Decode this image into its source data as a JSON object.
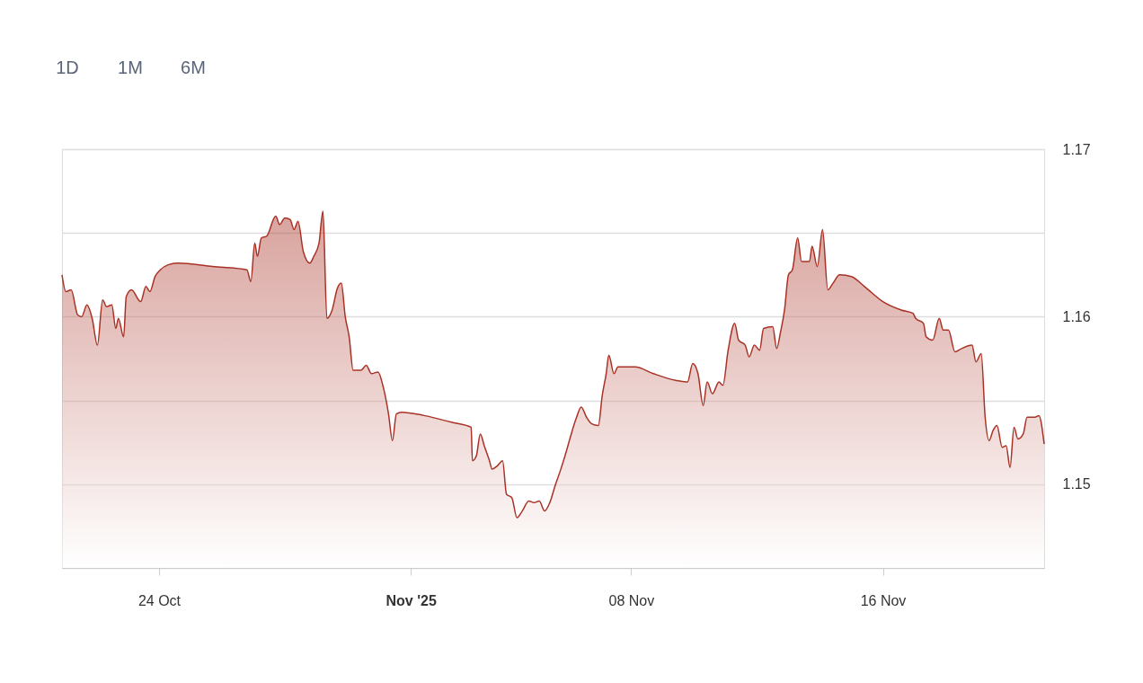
{
  "chart_data": {
    "type": "area",
    "annotations": [
      "1D",
      "1M",
      "6M"
    ],
    "x": [
      "2025-10-20T22:00",
      "2025-10-21T01:00",
      "2025-10-21T05:00",
      "2025-10-21T10:00",
      "2025-10-21T13:00",
      "2025-10-21T17:00",
      "2025-10-21T21:00",
      "2025-10-22T01:00",
      "2025-10-22T05:00",
      "2025-10-22T08:00",
      "2025-10-22T12:00",
      "2025-10-22T15:00",
      "2025-10-22T17:00",
      "2025-10-22T21:00",
      "2025-10-22T23:00",
      "2025-10-23T03:00",
      "2025-10-23T10:00",
      "2025-10-23T14:00",
      "2025-10-23T17:00",
      "2025-10-23T21:00",
      "2025-10-24T01:00",
      "2025-10-24T07:00",
      "2025-10-24T14:00",
      "2025-10-25T17:00",
      "2025-10-26T19:00",
      "2025-10-26T22:00",
      "2025-10-27T01:00",
      "2025-10-27T03:00",
      "2025-10-27T06:00",
      "2025-10-27T10:00",
      "2025-10-27T17:00",
      "2025-10-27T20:00",
      "2025-10-28T00:00",
      "2025-10-28T04:00",
      "2025-10-28T07:00",
      "2025-10-28T10:00",
      "2025-10-28T14:00",
      "2025-10-28T19:00",
      "2025-10-28T22:00",
      "2025-10-29T02:00",
      "2025-10-29T05:00",
      "2025-10-29T08:00",
      "2025-10-29T12:00",
      "2025-10-29T16:00",
      "2025-10-29T19:00",
      "2025-10-29T22:00",
      "2025-10-30T01:00",
      "2025-10-30T04:00",
      "2025-10-30T10:00",
      "2025-10-30T14:00",
      "2025-10-30T18:00",
      "2025-10-30T23:00",
      "2025-10-31T03:00",
      "2025-10-31T07:00",
      "2025-10-31T10:00",
      "2025-10-31T13:00",
      "2025-10-31T17:00",
      "2025-11-01T10:00",
      "2025-11-02T07:00",
      "2025-11-02T22:00",
      "2025-11-02T23:00",
      "2025-11-03T02:00",
      "2025-11-03T05:00",
      "2025-11-03T08:00",
      "2025-11-03T12:00",
      "2025-11-03T14:00",
      "2025-11-03T18:00",
      "2025-11-03T22:00",
      "2025-11-04T01:00",
      "2025-11-04T05:00",
      "2025-11-04T09:00",
      "2025-11-04T13:00",
      "2025-11-04T18:00",
      "2025-11-04T22:00",
      "2025-11-05T02:00",
      "2025-11-05T06:00",
      "2025-11-05T10:00",
      "2025-11-05T14:00",
      "2025-11-05T18:00",
      "2025-11-05T22:00",
      "2025-11-06T02:00",
      "2025-11-06T06:00",
      "2025-11-06T10:00",
      "2025-11-06T14:00",
      "2025-11-06T18:00",
      "2025-11-06T23:00",
      "2025-11-07T02:00",
      "2025-11-07T05:00",
      "2025-11-07T07:00",
      "2025-11-07T11:00",
      "2025-11-07T14:00",
      "2025-11-08T03:00",
      "2025-11-08T17:00",
      "2025-11-09T10:00",
      "2025-11-09T19:00",
      "2025-11-09T23:00",
      "2025-11-10T03:00",
      "2025-11-10T07:00",
      "2025-11-10T10:00",
      "2025-11-10T14:00",
      "2025-11-10T19:00",
      "2025-11-10T22:00",
      "2025-11-11T02:00",
      "2025-11-11T07:00",
      "2025-11-11T10:00",
      "2025-11-11T15:00",
      "2025-11-11T18:00",
      "2025-11-11T22:00",
      "2025-11-12T02:00",
      "2025-11-12T05:00",
      "2025-11-12T12:00",
      "2025-11-12T15:00",
      "2025-11-12T18:00",
      "2025-11-12T21:00",
      "2025-11-13T00:00",
      "2025-11-13T03:00",
      "2025-11-13T07:00",
      "2025-11-13T10:00",
      "2025-11-13T16:00",
      "2025-11-13T18:00",
      "2025-11-13T22:00",
      "2025-11-14T02:00",
      "2025-11-14T06:00",
      "2025-11-14T10:00",
      "2025-11-14T15:00",
      "2025-11-15T00:00",
      "2025-11-15T10:00",
      "2025-11-16T00:00",
      "2025-11-16T14:00",
      "2025-11-16T23:00",
      "2025-11-17T01:00",
      "2025-11-17T07:00",
      "2025-11-17T09:00",
      "2025-11-17T14:00",
      "2025-11-17T19:00",
      "2025-11-17T22:00",
      "2025-11-18T02:00",
      "2025-11-18T07:00",
      "2025-11-18T12:00",
      "2025-11-18T20:00",
      "2025-11-18T23:00",
      "2025-11-19T03:00",
      "2025-11-19T06:00",
      "2025-11-19T09:00",
      "2025-11-19T12:00",
      "2025-11-19T15:00",
      "2025-11-19T19:00",
      "2025-11-19T22:00",
      "2025-11-20T01:00",
      "2025-11-20T04:00",
      "2025-11-20T07:00",
      "2025-11-20T11:00",
      "2025-11-20T14:00",
      "2025-11-20T20:00",
      "2025-11-20T23:00",
      "2025-11-21T03:00"
    ],
    "series": [
      {
        "color": "#a93226",
        "values": [
          1.1625,
          1.1615,
          1.1616,
          1.1601,
          1.16,
          1.1607,
          1.1599,
          1.1583,
          1.161,
          1.1606,
          1.1607,
          1.1593,
          1.1599,
          1.1588,
          1.1612,
          1.1616,
          1.1609,
          1.1618,
          1.1615,
          1.1624,
          1.1628,
          1.1631,
          1.1632,
          1.163,
          1.1628,
          1.1621,
          1.1644,
          1.1636,
          1.1647,
          1.1648,
          1.166,
          1.1655,
          1.1659,
          1.1658,
          1.1652,
          1.1657,
          1.1639,
          1.1632,
          1.1636,
          1.1644,
          1.1663,
          1.1599,
          1.1604,
          1.1617,
          1.162,
          1.16,
          1.1588,
          1.1568,
          1.1568,
          1.1571,
          1.1566,
          1.1567,
          1.1558,
          1.1542,
          1.1526,
          1.1542,
          1.1543,
          1.1541,
          1.1537,
          1.1534,
          1.1514,
          1.1517,
          1.153,
          1.1523,
          1.1514,
          1.1509,
          1.1511,
          1.1514,
          1.1494,
          1.1492,
          1.148,
          1.1484,
          1.149,
          1.1489,
          1.149,
          1.1484,
          1.1489,
          1.1499,
          1.1508,
          1.1518,
          1.1529,
          1.1539,
          1.1546,
          1.154,
          1.1536,
          1.1535,
          1.1553,
          1.1566,
          1.1577,
          1.1566,
          1.157,
          1.157,
          1.1566,
          1.1562,
          1.1561,
          1.1572,
          1.1566,
          1.1547,
          1.1561,
          1.1554,
          1.1561,
          1.1559,
          1.158,
          1.1596,
          1.1586,
          1.1583,
          1.1576,
          1.1583,
          1.158,
          1.1593,
          1.1594,
          1.1581,
          1.1591,
          1.1604,
          1.1625,
          1.1628,
          1.1647,
          1.1633,
          1.1633,
          1.1642,
          1.163,
          1.1652,
          1.1616,
          1.162,
          1.1625,
          1.1624,
          1.1618,
          1.1609,
          1.1604,
          1.1602,
          1.1599,
          1.1596,
          1.1588,
          1.1586,
          1.1599,
          1.1592,
          1.1592,
          1.1579,
          1.1581,
          1.1583,
          1.1573,
          1.1578,
          1.154,
          1.1526,
          1.1532,
          1.1535,
          1.1522,
          1.1523,
          1.151,
          1.1534,
          1.1527,
          1.153,
          1.154,
          1.154,
          1.1541,
          1.1524
        ]
      }
    ],
    "xlim": [
      "2025-10-20T22:00",
      "2025-11-21T03:00"
    ],
    "xticks": [
      {
        "value": "2025-10-24",
        "label": "24 Oct"
      },
      {
        "value": "2025-11-01",
        "label": "Nov '25"
      },
      {
        "value": "2025-11-08",
        "label": "08 Nov"
      },
      {
        "value": "2025-11-16",
        "label": "16 Nov"
      }
    ],
    "ylim": [
      1.145,
      1.17
    ],
    "yticks": [
      {
        "value": 1.145,
        "label": null
      },
      1.15,
      {
        "value": 1.155,
        "label": null
      },
      1.16,
      {
        "value": 1.165,
        "label": null
      },
      1.17
    ],
    "grid": "y"
  }
}
